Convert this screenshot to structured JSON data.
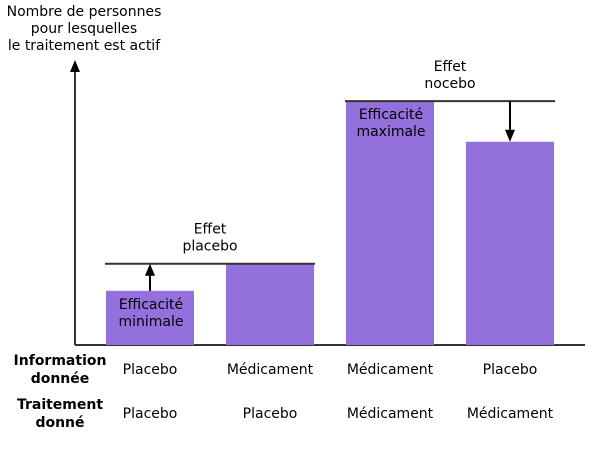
{
  "chart_data": {
    "type": "bar",
    "ylabel": [
      "Nombre de personnes",
      "pour lesquelles",
      "le traitement est actif"
    ],
    "bar_color": "#9370db",
    "line_color": "#333333",
    "ylim": [
      0,
      100
    ],
    "bars": [
      {
        "value": 20,
        "label": [
          "Efficacité",
          "minimale"
        ]
      },
      {
        "value": 30,
        "label": []
      },
      {
        "value": 90,
        "label": [
          "Efficacité",
          "maximale"
        ]
      },
      {
        "value": 75,
        "label": []
      }
    ],
    "annotations": [
      {
        "text": [
          "Effet",
          "placebo"
        ],
        "level": 30,
        "arrow_from": 20,
        "arrow_to": 30,
        "arrow_bar": 0,
        "line_bars": [
          0,
          1
        ]
      },
      {
        "text": [
          "Effet",
          "nocebo"
        ],
        "level": 90,
        "arrow_from": 90,
        "arrow_to": 75,
        "arrow_bar": 3,
        "line_bars": [
          2,
          3
        ]
      }
    ],
    "rows": [
      {
        "header": [
          "Information",
          "donnée"
        ],
        "cells": [
          "Placebo",
          "Médicament",
          "Médicament",
          "Placebo"
        ]
      },
      {
        "header": [
          "Traitement",
          "donné"
        ],
        "cells": [
          "Placebo",
          "Placebo",
          "Médicament",
          "Médicament"
        ]
      }
    ]
  }
}
